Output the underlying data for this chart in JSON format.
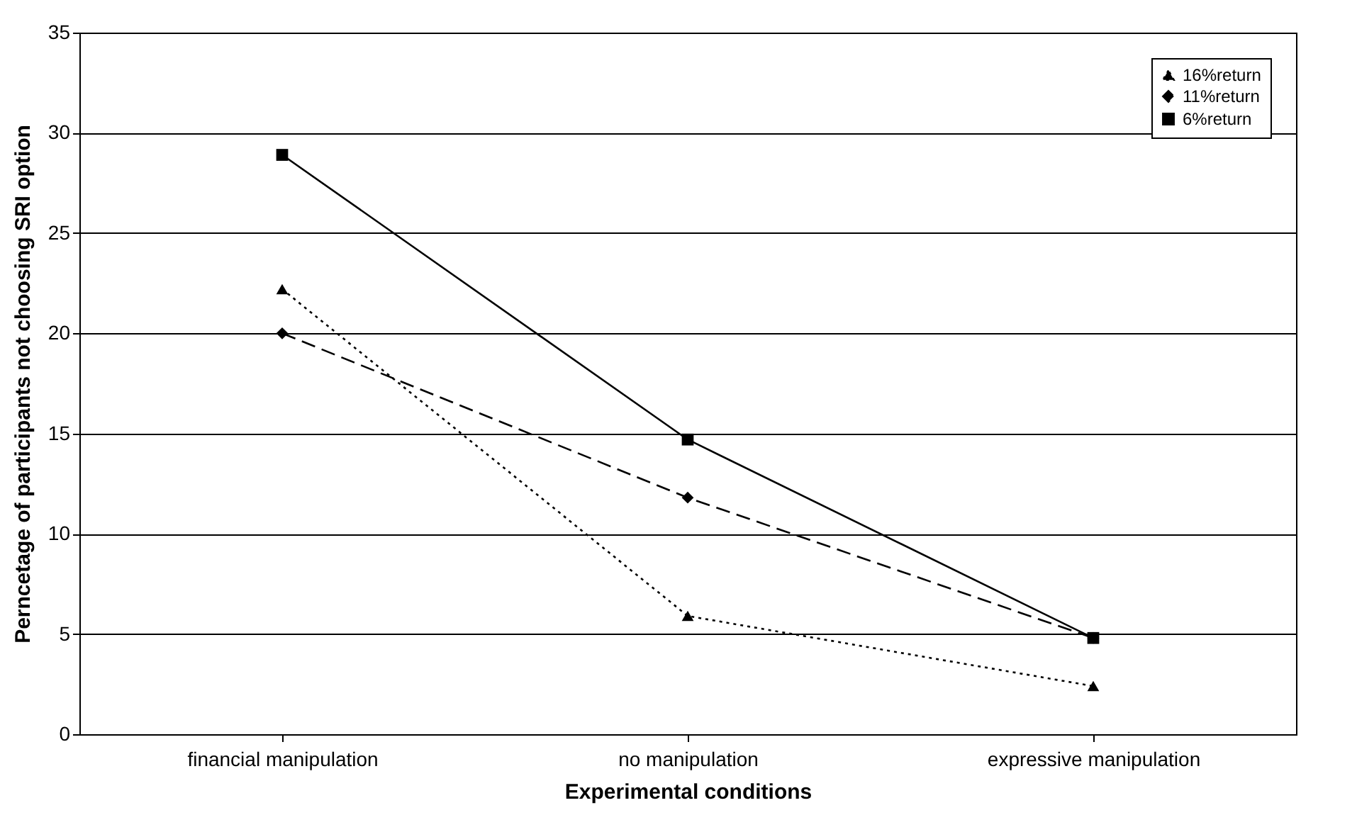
{
  "chart_data": {
    "type": "line",
    "xlabel": "Experimental conditions",
    "ylabel": "Perncetage of participants not choosing SRI option",
    "categories": [
      "financial manipulation",
      "no manipulation",
      "expressive manipulation"
    ],
    "series": [
      {
        "name": "16%return",
        "color": "#000000",
        "marker": "triangle",
        "line_style": "dotted",
        "values": [
          22.2,
          5.9,
          2.4
        ]
      },
      {
        "name": "11%return",
        "color": "#000000",
        "marker": "diamond",
        "line_style": "dashed",
        "values": [
          20,
          11.8,
          4.8
        ]
      },
      {
        "name": "6%return",
        "color": "#000000",
        "marker": "square",
        "line_style": "solid",
        "values": [
          28.9,
          14.7,
          4.8
        ]
      }
    ],
    "ylim": [
      0,
      35
    ],
    "yticks": [
      0,
      5,
      10,
      15,
      20,
      25,
      30,
      35
    ],
    "grid": "y",
    "legend": "top right"
  }
}
